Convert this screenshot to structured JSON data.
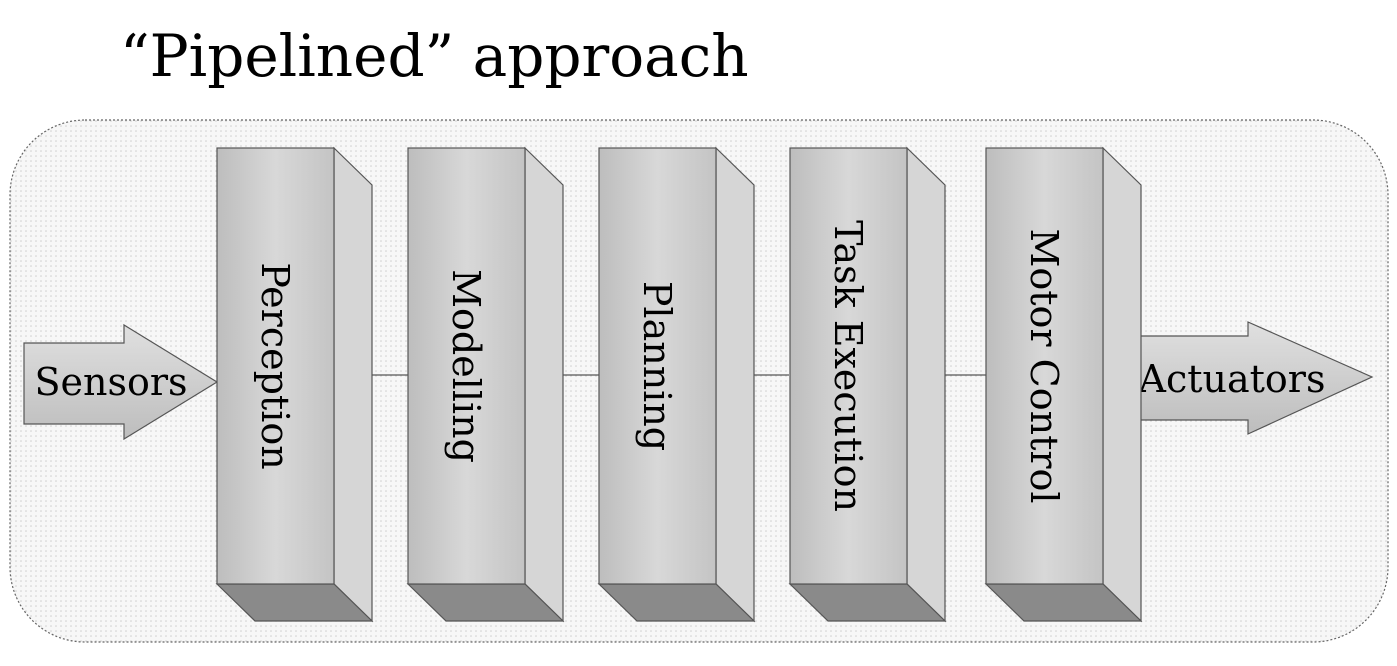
{
  "title": "“Pipelined” approach",
  "input": {
    "label": "Sensors"
  },
  "output": {
    "label": "Actuators"
  },
  "stages": [
    {
      "label": "Perception"
    },
    {
      "label": "Modelling"
    },
    {
      "label": "Planning"
    },
    {
      "label": "Task Execution"
    },
    {
      "label": "Motor Control"
    }
  ],
  "colors": {
    "box_front": "#c8c8c8",
    "box_side": "#d9d9d9",
    "box_bottom": "#8c8c8c",
    "arrow_fill": "#cfcfcf",
    "outline": "#555555",
    "container_bg": "#f4f4f4"
  }
}
